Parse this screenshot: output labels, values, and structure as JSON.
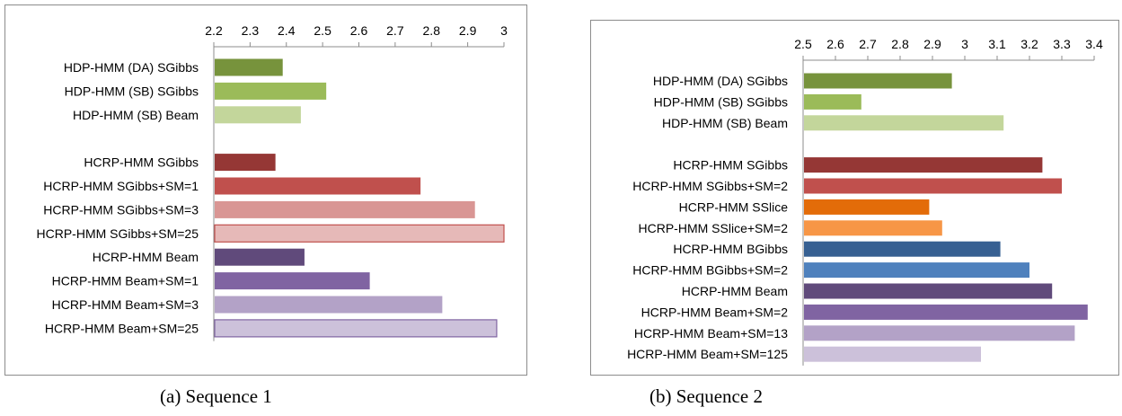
{
  "chart_data": [
    {
      "type": "bar",
      "orientation": "horizontal",
      "caption": "(a) Sequence 1",
      "xlim": [
        2.2,
        3.0
      ],
      "ticks": [
        "2.2",
        "2.3",
        "2.4",
        "2.5",
        "2.6",
        "2.7",
        "2.8",
        "2.9",
        "3"
      ],
      "tick_values": [
        2.2,
        2.3,
        2.4,
        2.5,
        2.6,
        2.7,
        2.8,
        2.9,
        3.0
      ],
      "grid": false,
      "axis_position": "top",
      "categories": [
        "HDP-HMM (DA) SGibbs",
        "HDP-HMM (SB) SGibbs",
        "HDP-HMM (SB) Beam",
        "",
        "HCRP-HMM SGibbs",
        "HCRP-HMM SGibbs+SM=1",
        "HCRP-HMM SGibbs+SM=3",
        "HCRP-HMM SGibbs+SM=25",
        "HCRP-HMM Beam",
        "HCRP-HMM Beam+SM=1",
        "HCRP-HMM Beam+SM=3",
        "HCRP-HMM Beam+SM=25"
      ],
      "values": [
        2.39,
        2.51,
        2.44,
        null,
        2.37,
        2.77,
        2.92,
        3.0,
        2.45,
        2.63,
        2.83,
        2.98
      ],
      "colors": [
        "#77933c",
        "#9bbb59",
        "#c3d69b",
        "",
        "#953735",
        "#c0504d",
        "#d99694",
        "#e6b9b8",
        "#604a7b",
        "#8064a2",
        "#b3a2c7",
        "#ccc1da"
      ],
      "outlined": [
        false,
        false,
        false,
        false,
        false,
        false,
        false,
        true,
        false,
        false,
        false,
        true
      ],
      "outline_colors": [
        "",
        "",
        "",
        "",
        "",
        "",
        "",
        "#c0504d",
        "",
        "",
        "",
        "#8064a2"
      ]
    },
    {
      "type": "bar",
      "orientation": "horizontal",
      "caption": "(b) Sequence 2",
      "xlim": [
        2.5,
        3.4
      ],
      "ticks": [
        "2.5",
        "2.6",
        "2.7",
        "2.8",
        "2.9",
        "3",
        "3.1",
        "3.2",
        "3.3",
        "3.4"
      ],
      "tick_values": [
        2.5,
        2.6,
        2.7,
        2.8,
        2.9,
        3.0,
        3.1,
        3.2,
        3.3,
        3.4
      ],
      "grid": false,
      "axis_position": "top",
      "categories": [
        "HDP-HMM (DA) SGibbs",
        "HDP-HMM (SB) SGibbs",
        "HDP-HMM (SB) Beam",
        "",
        "HCRP-HMM SGibbs",
        "HCRP-HMM SGibbs+SM=2",
        "HCRP-HMM SSlice",
        "HCRP-HMM SSlice+SM=2",
        "HCRP-HMM BGibbs",
        "HCRP-HMM BGibbs+SM=2",
        "HCRP-HMM Beam",
        "HCRP-HMM Beam+SM=2",
        "HCRP-HMM Beam+SM=13",
        "HCRP-HMM Beam+SM=125"
      ],
      "values": [
        2.96,
        2.68,
        3.12,
        null,
        3.24,
        3.3,
        2.89,
        2.93,
        3.11,
        3.2,
        3.27,
        3.38,
        3.34,
        3.05
      ],
      "colors": [
        "#77933c",
        "#9bbb59",
        "#c3d69b",
        "",
        "#953735",
        "#c0504d",
        "#e36c09",
        "#f79646",
        "#376092",
        "#4f81bd",
        "#604a7b",
        "#8064a2",
        "#b3a2c7",
        "#ccc1da"
      ],
      "outlined": [
        false,
        false,
        false,
        false,
        false,
        false,
        false,
        false,
        false,
        false,
        false,
        false,
        false,
        false
      ],
      "outline_colors": [
        "",
        "",
        "",
        "",
        "",
        "",
        "",
        "",
        "",
        "",
        "",
        "",
        "",
        ""
      ]
    }
  ]
}
